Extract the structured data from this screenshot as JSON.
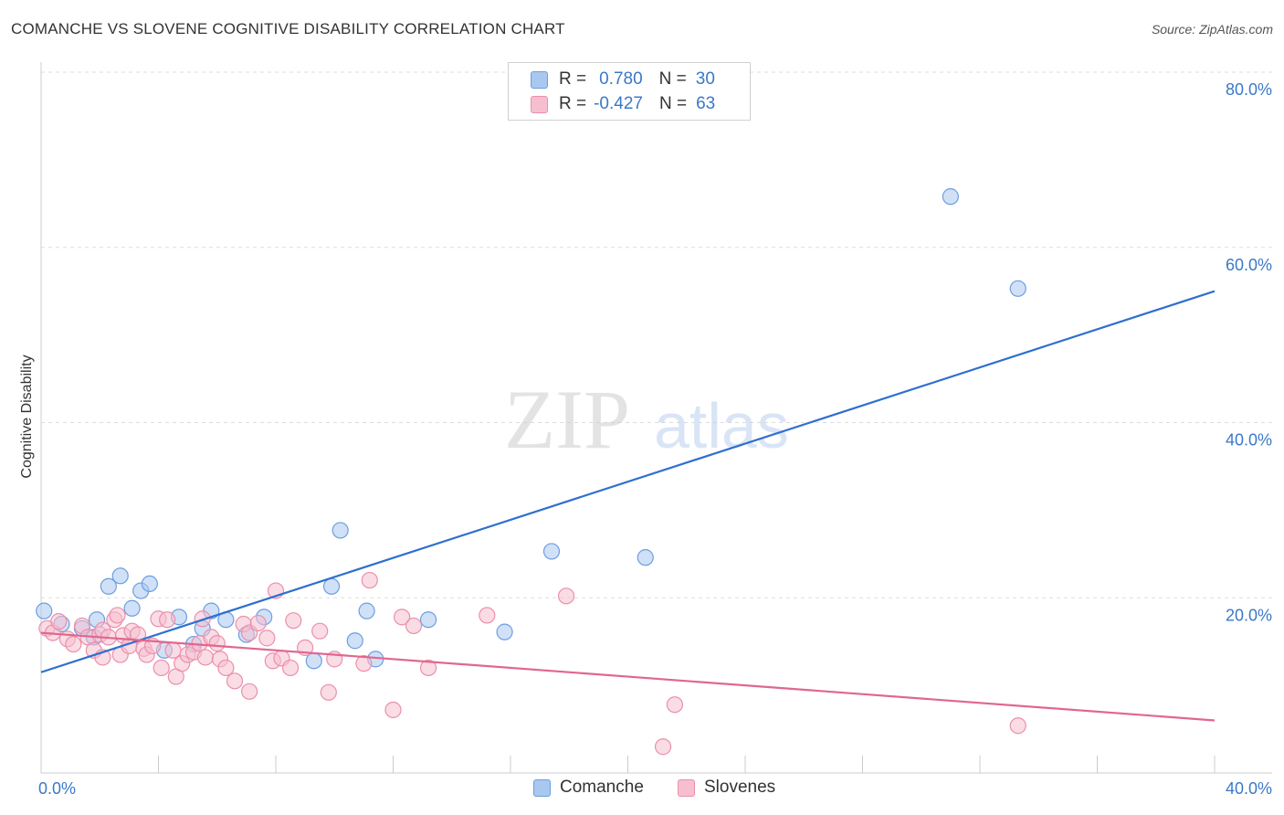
{
  "title": "COMANCHE VS SLOVENE COGNITIVE DISABILITY CORRELATION CHART",
  "source": "Source: ZipAtlas.com",
  "watermark": {
    "zip": "ZIP",
    "atlas": "atlas"
  },
  "legend": {
    "rows": [
      {
        "r_label": "R =",
        "r_value": "0.780",
        "n_label": "N =",
        "n_value": "30"
      },
      {
        "r_label": "R =",
        "r_value": "-0.427",
        "n_label": "N =",
        "n_value": "63"
      }
    ]
  },
  "colors": {
    "comanche_fill": "#a9c8f0",
    "comanche_stroke": "#6d9ee0",
    "comanche_line": "#2f6fcf",
    "slovenes_fill": "#f6bfd0",
    "slovenes_stroke": "#ec8fab",
    "slovenes_line": "#e0678f",
    "axis_label": "#3a78c9",
    "grid": "#dddddd"
  },
  "chart_data": {
    "type": "scatter",
    "title": "COMANCHE VS SLOVENE COGNITIVE DISABILITY CORRELATION CHART",
    "xlabel": "",
    "ylabel": "Cognitive Disability",
    "xlim": [
      0,
      40
    ],
    "ylim": [
      0,
      80
    ],
    "x_tick_labels": [
      "0.0%",
      "40.0%"
    ],
    "y_ticks": [
      20,
      40,
      60,
      80
    ],
    "y_tick_labels": [
      "20.0%",
      "40.0%",
      "60.0%",
      "80.0%"
    ],
    "grid": true,
    "legend_position": "bottom",
    "series": [
      {
        "name": "Comanche",
        "r": 0.78,
        "n": 30,
        "trend": {
          "x": [
            0,
            40
          ],
          "y": [
            11.5,
            55.0
          ]
        },
        "points": [
          [
            0.1,
            18.5
          ],
          [
            0.7,
            17.0
          ],
          [
            1.4,
            16.5
          ],
          [
            1.8,
            15.5
          ],
          [
            1.9,
            17.5
          ],
          [
            2.3,
            21.3
          ],
          [
            2.7,
            22.5
          ],
          [
            3.1,
            18.8
          ],
          [
            3.4,
            20.8
          ],
          [
            3.7,
            21.6
          ],
          [
            4.2,
            14.0
          ],
          [
            4.7,
            17.8
          ],
          [
            5.2,
            14.7
          ],
          [
            5.5,
            16.5
          ],
          [
            5.8,
            18.5
          ],
          [
            6.3,
            17.5
          ],
          [
            7.0,
            15.8
          ],
          [
            7.6,
            17.8
          ],
          [
            9.3,
            12.8
          ],
          [
            9.9,
            21.3
          ],
          [
            10.2,
            27.7
          ],
          [
            10.7,
            15.1
          ],
          [
            11.1,
            18.5
          ],
          [
            11.4,
            13.0
          ],
          [
            13.2,
            17.5
          ],
          [
            15.8,
            16.1
          ],
          [
            17.4,
            25.3
          ],
          [
            20.6,
            24.6
          ],
          [
            31.0,
            65.8
          ],
          [
            33.3,
            55.3
          ]
        ]
      },
      {
        "name": "Slovenes",
        "r": -0.427,
        "n": 63,
        "trend": {
          "x": [
            0,
            40
          ],
          "y": [
            16.0,
            6.0
          ]
        },
        "points": [
          [
            0.2,
            16.5
          ],
          [
            0.4,
            16.0
          ],
          [
            0.6,
            17.3
          ],
          [
            0.9,
            15.3
          ],
          [
            1.1,
            14.7
          ],
          [
            1.4,
            16.8
          ],
          [
            1.6,
            15.5
          ],
          [
            1.8,
            14.0
          ],
          [
            2.0,
            15.8
          ],
          [
            2.1,
            16.3
          ],
          [
            2.3,
            15.5
          ],
          [
            2.1,
            13.2
          ],
          [
            2.5,
            17.5
          ],
          [
            2.6,
            18.0
          ],
          [
            2.7,
            13.5
          ],
          [
            2.8,
            15.7
          ],
          [
            3.0,
            14.5
          ],
          [
            3.1,
            16.2
          ],
          [
            3.3,
            15.8
          ],
          [
            3.5,
            14.2
          ],
          [
            3.6,
            13.5
          ],
          [
            3.8,
            14.5
          ],
          [
            4.0,
            17.6
          ],
          [
            4.1,
            12.0
          ],
          [
            4.3,
            17.5
          ],
          [
            4.5,
            14.0
          ],
          [
            4.6,
            11.0
          ],
          [
            4.8,
            12.5
          ],
          [
            5.0,
            13.5
          ],
          [
            5.2,
            13.8
          ],
          [
            5.4,
            14.8
          ],
          [
            5.5,
            17.6
          ],
          [
            5.6,
            13.2
          ],
          [
            5.8,
            15.5
          ],
          [
            6.0,
            14.8
          ],
          [
            6.1,
            13.0
          ],
          [
            6.3,
            12.0
          ],
          [
            6.6,
            10.5
          ],
          [
            6.9,
            17.0
          ],
          [
            7.1,
            16.0
          ],
          [
            7.1,
            9.3
          ],
          [
            7.4,
            17.1
          ],
          [
            7.7,
            15.4
          ],
          [
            7.9,
            12.8
          ],
          [
            8.0,
            20.8
          ],
          [
            8.2,
            13.1
          ],
          [
            8.5,
            12.0
          ],
          [
            8.6,
            17.4
          ],
          [
            9.0,
            14.3
          ],
          [
            9.5,
            16.2
          ],
          [
            9.8,
            9.2
          ],
          [
            10.0,
            13.0
          ],
          [
            11.0,
            12.5
          ],
          [
            11.2,
            22.0
          ],
          [
            12.0,
            7.2
          ],
          [
            12.3,
            17.8
          ],
          [
            12.7,
            16.8
          ],
          [
            13.2,
            12.0
          ],
          [
            15.2,
            18.0
          ],
          [
            17.9,
            20.2
          ],
          [
            21.6,
            7.8
          ],
          [
            21.2,
            3.0
          ],
          [
            33.3,
            5.4
          ]
        ]
      }
    ]
  },
  "bottom_legend": [
    {
      "name": "Comanche"
    },
    {
      "name": "Slovenes"
    }
  ]
}
